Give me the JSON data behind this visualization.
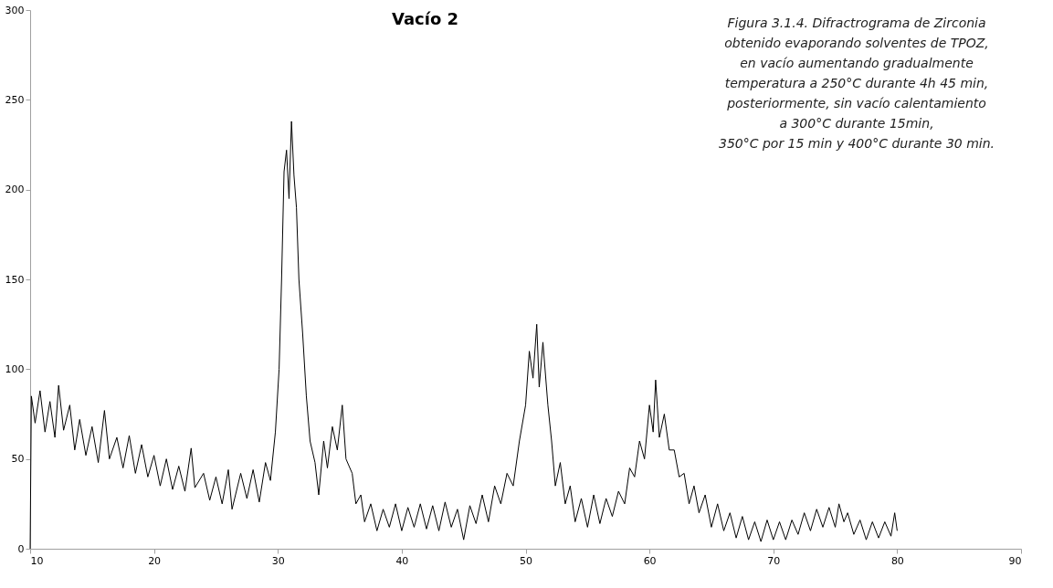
{
  "chart_data": {
    "type": "line",
    "title": "Vacío 2",
    "annotations": [
      "Figura 3.1.4. Difractrograma de Zirconia\nobtenido evaporando solventes de TPOZ,\nen vacío aumentando gradualmente\ntemperatura a 250°C durante 4h 45 min,\nposteriormente, sin vacío calentamiento\na 300°C durante 15min,\n350°C por 15 min y 400°C durante 30 min."
    ],
    "x": [
      10,
      10.1,
      10.4,
      10.8,
      11.2,
      11.6,
      12,
      12.3,
      12.7,
      13.2,
      13.6,
      14,
      14.5,
      15,
      15.5,
      16,
      16.4,
      17,
      17.5,
      18,
      18.5,
      19,
      19.5,
      20,
      20.5,
      21,
      21.5,
      22,
      22.5,
      23,
      23.3,
      24,
      24.5,
      25,
      25.5,
      26,
      26.3,
      27,
      27.5,
      28,
      28.5,
      29,
      29.4,
      29.8,
      30.1,
      30.3,
      30.5,
      30.7,
      30.9,
      31.1,
      31.3,
      31.5,
      31.7,
      32,
      32.3,
      32.6,
      33,
      33.3,
      33.7,
      34,
      34.4,
      34.8,
      35.2,
      35.5,
      36,
      36.3,
      36.7,
      37,
      37.5,
      38,
      38.5,
      39,
      39.5,
      40,
      40.5,
      41,
      41.5,
      42,
      42.5,
      43,
      43.5,
      44,
      44.5,
      45,
      45.5,
      46,
      46.5,
      47,
      47.5,
      48,
      48.5,
      49,
      49.5,
      50,
      50.3,
      50.6,
      50.9,
      51.1,
      51.4,
      51.8,
      52.1,
      52.4,
      52.8,
      53.2,
      53.6,
      54,
      54.5,
      55,
      55.5,
      56,
      56.5,
      57,
      57.5,
      58,
      58.4,
      58.8,
      59.2,
      59.6,
      60,
      60.3,
      60.5,
      60.8,
      61.2,
      61.6,
      62,
      62.4,
      62.8,
      63.2,
      63.6,
      64,
      64.5,
      65,
      65.5,
      66,
      66.5,
      67,
      67.5,
      68,
      68.5,
      69,
      69.5,
      70,
      70.5,
      71,
      71.5,
      72,
      72.5,
      73,
      73.5,
      74,
      74.5,
      75,
      75.3,
      75.7,
      76,
      76.5,
      77,
      77.5,
      78,
      78.5,
      79,
      79.5,
      79.8,
      80
    ],
    "series": [
      {
        "color": "#000000",
        "values": [
          0,
          85,
          70,
          88,
          65,
          82,
          62,
          91,
          66,
          80,
          55,
          72,
          52,
          68,
          48,
          77,
          50,
          62,
          45,
          63,
          42,
          58,
          40,
          52,
          35,
          50,
          33,
          46,
          32,
          56,
          34,
          42,
          27,
          40,
          25,
          44,
          22,
          42,
          28,
          44,
          26,
          48,
          38,
          65,
          100,
          150,
          210,
          222,
          195,
          238,
          208,
          190,
          150,
          120,
          85,
          60,
          48,
          30,
          60,
          45,
          68,
          55,
          80,
          50,
          42,
          25,
          30,
          15,
          25,
          10,
          22,
          12,
          25,
          10,
          23,
          12,
          25,
          11,
          24,
          10,
          26,
          12,
          22,
          5,
          24,
          14,
          30,
          15,
          35,
          25,
          42,
          35,
          60,
          80,
          110,
          95,
          125,
          90,
          115,
          80,
          60,
          35,
          48,
          25,
          35,
          15,
          28,
          12,
          30,
          14,
          28,
          18,
          32,
          25,
          45,
          40,
          60,
          50,
          80,
          65,
          94,
          62,
          75,
          55,
          55,
          40,
          42,
          25,
          35,
          20,
          30,
          12,
          25,
          10,
          20,
          6,
          18,
          5,
          15,
          4,
          16,
          5,
          15,
          5,
          16,
          8,
          20,
          10,
          22,
          12,
          23,
          12,
          25,
          15,
          20,
          8,
          16,
          5,
          15,
          6,
          15,
          7,
          20,
          10
        ]
      }
    ],
    "xlim": [
      10,
      90
    ],
    "xticks": [
      10,
      20,
      30,
      40,
      50,
      60,
      70,
      80,
      90
    ],
    "ylim": [
      0,
      300
    ],
    "yticks": [
      0,
      50,
      100,
      150,
      200,
      250,
      300
    ],
    "grid": false,
    "legend": false
  }
}
